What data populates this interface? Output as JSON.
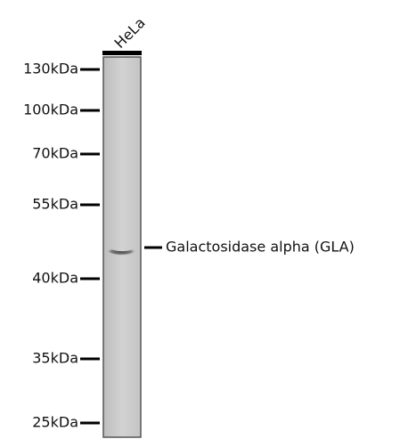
{
  "lane": {
    "label": "HeLa"
  },
  "markers": [
    "130kDa",
    "100kDa",
    "70kDa",
    "55kDa",
    "40kDa",
    "35kDa",
    "25kDa"
  ],
  "band": {
    "label": "Galactosidase alpha (GLA)"
  }
}
